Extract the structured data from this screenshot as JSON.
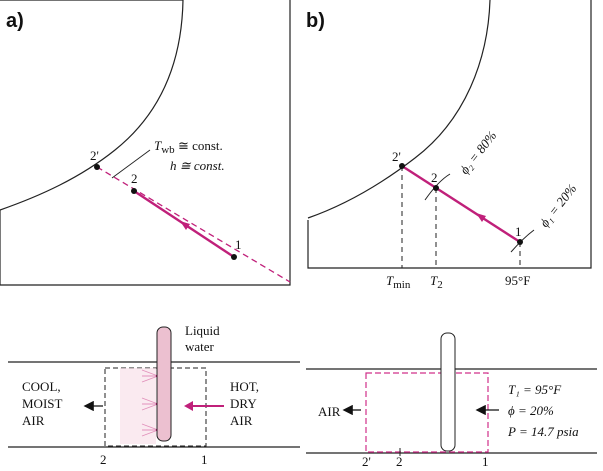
{
  "panels": {
    "a": {
      "label": "a)",
      "point_2p": "2'",
      "point_2": "2",
      "point_1": "1",
      "annot_twb_sym": "T",
      "annot_twb_sub": "wb",
      "annot_twb_rest": " ≅ const.",
      "annot_h": "h ≅ const."
    },
    "b": {
      "label": "b)",
      "point_2p": "2'",
      "point_2": "2",
      "point_1": "1",
      "phi2": "ϕ₂ = 80%",
      "phi1": "ϕ₁ = 20%",
      "tmin_sym": "T",
      "tmin_sub": "min",
      "t2_sym": "T",
      "t2_sub": "2",
      "t95": "95°F"
    },
    "c": {
      "liquid": "Liquid",
      "water": "water",
      "cool": "COOL,",
      "moist": "MOIST",
      "air_out": "AIR",
      "hot": "HOT,",
      "dry": "DRY",
      "air_in": "AIR",
      "station_2": "2",
      "station_1": "1"
    },
    "d": {
      "air": "AIR",
      "t1": "T₁ = 95°F",
      "phi": "ϕ = 20%",
      "p": "P = 14.7 psia",
      "station_2p": "2'",
      "station_2": "2",
      "station_1": "1"
    }
  },
  "colors": {
    "process_line": "#c0207a",
    "dashed_box_d": "#d0308a",
    "tube_fill": "#ecc0d0"
  }
}
